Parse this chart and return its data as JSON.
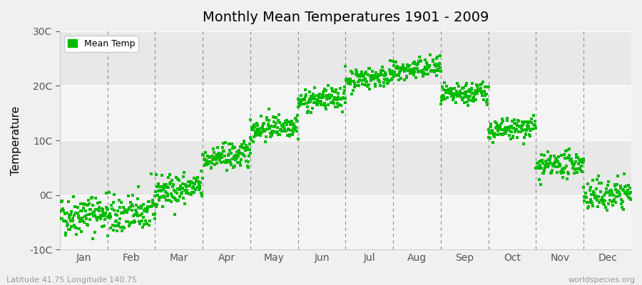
{
  "title": "Monthly Mean Temperatures 1901 - 2009",
  "ylabel": "Temperature",
  "bg_color": "#f0f0f0",
  "plot_bg_color": "#ffffff",
  "band_color_odd": "#e8e8e8",
  "band_color_even": "#f4f4f4",
  "dot_color": "#00bb00",
  "dot_size": 6,
  "ylim": [
    -10,
    30
  ],
  "yticks": [
    -10,
    0,
    10,
    20,
    30
  ],
  "ytick_labels": [
    "-10C",
    "0C",
    "10C",
    "20C",
    "30C"
  ],
  "months": [
    "Jan",
    "Feb",
    "Mar",
    "Apr",
    "May",
    "Jun",
    "Jul",
    "Aug",
    "Sep",
    "Oct",
    "Nov",
    "Dec"
  ],
  "monthly_means": [
    -4.0,
    -4.0,
    0.5,
    6.5,
    12.0,
    17.0,
    21.0,
    22.5,
    18.0,
    11.5,
    5.0,
    -0.5
  ],
  "monthly_stds": [
    1.8,
    1.8,
    1.4,
    1.2,
    1.1,
    1.0,
    1.0,
    1.0,
    1.0,
    1.0,
    1.1,
    1.4
  ],
  "trend_per_century": 1.0,
  "n_years": 109,
  "start_year": 1901,
  "end_year": 2009,
  "bottom_left_text": "Latitude 41.75 Longitude 140.75",
  "bottom_right_text": "worldspecies.org",
  "legend_label": "Mean Temp",
  "fig_width": 9.0,
  "fig_height": 4.0,
  "dpi": 100
}
